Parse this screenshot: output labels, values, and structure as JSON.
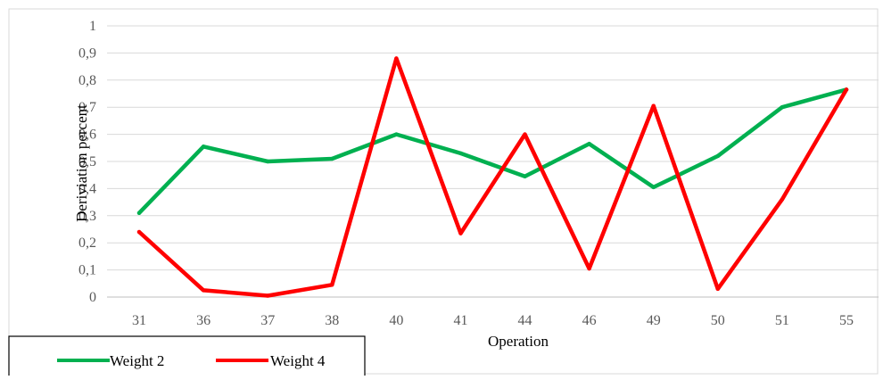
{
  "chart_data": {
    "type": "line",
    "title": "",
    "xlabel": "Operation",
    "ylabel": "Deriviation percent",
    "categories": [
      "31",
      "36",
      "37",
      "38",
      "40",
      "41",
      "44",
      "46",
      "49",
      "50",
      "51",
      "55"
    ],
    "ylim": [
      0,
      1
    ],
    "y_ticks": [
      "0",
      "0,1",
      "0,2",
      "0,3",
      "0,4",
      "0,5",
      "0,6",
      "0,7",
      "0,8",
      "0,9",
      "1"
    ],
    "grid": "horizontal",
    "legend_position": "bottom-left",
    "series": [
      {
        "name": "Weight 2",
        "color": "#00b050",
        "values": [
          0.31,
          0.555,
          0.5,
          0.51,
          0.6,
          0.53,
          0.445,
          0.565,
          0.405,
          0.52,
          0.7,
          0.765
        ]
      },
      {
        "name": "Weight 4",
        "color": "#ff0000",
        "values": [
          0.24,
          0.025,
          0.005,
          0.045,
          0.88,
          0.235,
          0.6,
          0.105,
          0.705,
          0.03,
          0.36,
          0.765
        ]
      }
    ]
  }
}
